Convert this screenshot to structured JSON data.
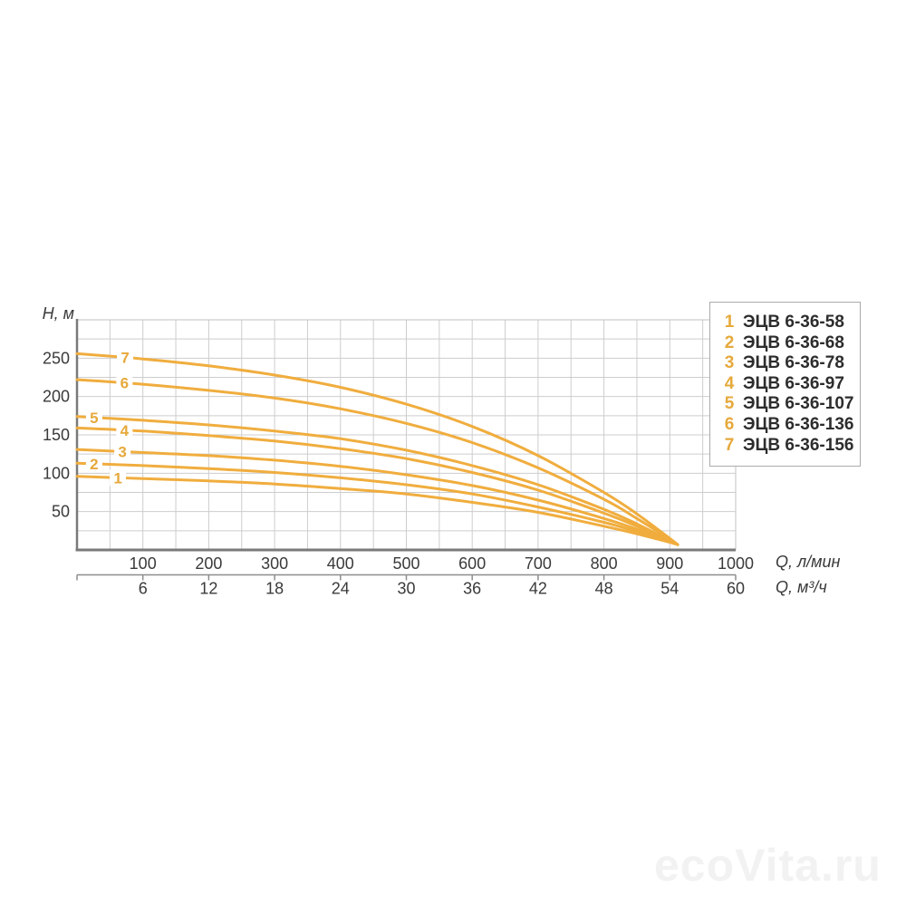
{
  "axes": {
    "y": {
      "label": "H, м",
      "tick_values": [
        50,
        100,
        150,
        200,
        250
      ],
      "range": [
        0,
        300
      ],
      "minor_step": 25
    },
    "x_primary": {
      "unit": "Q, л/мин",
      "tick_values": [
        100,
        200,
        300,
        400,
        500,
        600,
        700,
        800,
        900,
        1000
      ],
      "range": [
        0,
        1000
      ],
      "minor_step": 50
    },
    "x_secondary": {
      "unit": "Q, м³/ч",
      "tick_values": [
        6,
        12,
        18,
        24,
        30,
        36,
        42,
        48,
        54,
        60
      ],
      "range": [
        0,
        60
      ]
    }
  },
  "watermark": "ecoVita.ru",
  "colors": {
    "curve": "#f0ad3e",
    "curve_number": "#e6a93c",
    "tick_text": "#3a3a3a",
    "legend_text": "#2d2d2d",
    "grid": "#cdcdcd",
    "grid_edge": "#c2c2c2",
    "frame": "#7a7a7a",
    "secondary_axis": "#8d8d8d",
    "legend_border": "#ababab",
    "watermark": "#f2f2f2"
  },
  "chart_data": {
    "type": "line",
    "title": "",
    "xlabel": "Q, л/мин",
    "xlabel_secondary": "Q, м³/ч",
    "ylabel": "H, м",
    "xlim": [
      0,
      1000
    ],
    "ylim": [
      0,
      300
    ],
    "grid": true,
    "legend_position": "top-right",
    "x": [
      0,
      100,
      200,
      300,
      400,
      500,
      600,
      700,
      800,
      850,
      900,
      912
    ],
    "series": [
      {
        "num": "1",
        "name": "ЭЦВ 6-36-58",
        "values": [
          96,
          93,
          90,
          86,
          80,
          73,
          62,
          49,
          31,
          21,
          10,
          7
        ],
        "label_at_q": 62
      },
      {
        "num": "2",
        "name": "ЭЦВ 6-36-68",
        "values": [
          113,
          110,
          106,
          101,
          94,
          85,
          73,
          56,
          36,
          24,
          10,
          7
        ],
        "label_at_q": 26
      },
      {
        "num": "3",
        "name": "ЭЦВ 6-36-78",
        "values": [
          131,
          127,
          123,
          117,
          109,
          98,
          84,
          65,
          41,
          27,
          11,
          7
        ],
        "label_at_q": 69
      },
      {
        "num": "4",
        "name": "ЭЦВ 6-36-97",
        "values": [
          159,
          155,
          149,
          142,
          132,
          119,
          101,
          78,
          48,
          31,
          12,
          7
        ],
        "label_at_q": 72
      },
      {
        "num": "5",
        "name": "ЭЦВ 6-36-107",
        "values": [
          174,
          169,
          163,
          155,
          145,
          130,
          110,
          85,
          53,
          34,
          12,
          7
        ],
        "label_at_q": 26
      },
      {
        "num": "6",
        "name": "ЭЦВ 6-36-136",
        "values": [
          222,
          216,
          208,
          198,
          184,
          165,
          140,
          107,
          66,
          41,
          14,
          7
        ],
        "label_at_q": 72
      },
      {
        "num": "7",
        "name": "ЭЦВ 6-36-156",
        "values": [
          256,
          249,
          240,
          228,
          212,
          190,
          161,
          123,
          75,
          47,
          15,
          7
        ],
        "label_at_q": 73
      }
    ]
  }
}
